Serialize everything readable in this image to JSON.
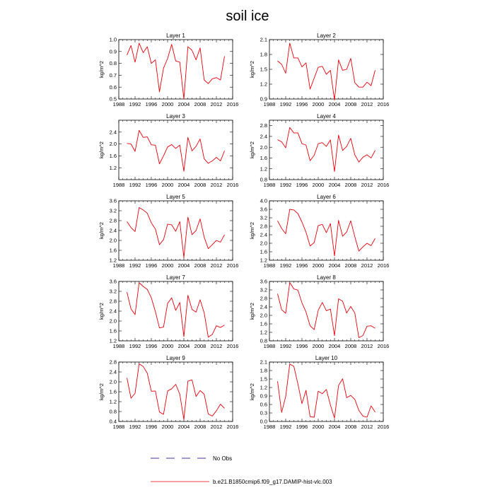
{
  "title": "soil ice",
  "legend": {
    "obs_label": "No Obs",
    "obs_color": "#4b2fa0",
    "model_label": "b.e21.B1850cmip6.f09_g17.DAMIP-hist-vlc.003",
    "model_color": "#e8000b"
  },
  "chart_data": [
    {
      "type": "line",
      "title": "Layer 1",
      "ylabel": "kg/m^2",
      "xlim": [
        1988,
        2016
      ],
      "x_ticks": [
        "1988",
        "1992",
        "1996",
        "2000",
        "2004",
        "2008",
        "2012",
        "2016"
      ],
      "ylim": [
        0.5,
        1.0
      ],
      "y_ticks": [
        "0.5",
        "0.6",
        "0.7",
        "0.8",
        "0.9",
        "1.0"
      ],
      "x": [
        1990,
        1991,
        1992,
        1993,
        1994,
        1995,
        1996,
        1997,
        1998,
        1999,
        2000,
        2001,
        2002,
        2003,
        2004,
        2005,
        2006,
        2007,
        2008,
        2009,
        2010,
        2011,
        2012,
        2013,
        2014
      ],
      "series": [
        {
          "values": [
            0.87,
            0.95,
            0.81,
            0.97,
            0.89,
            0.94,
            0.8,
            0.83,
            0.56,
            0.76,
            0.84,
            0.96,
            0.82,
            0.81,
            0.5,
            0.94,
            0.91,
            0.83,
            0.93,
            0.66,
            0.63,
            0.67,
            0.68,
            0.66,
            0.86
          ]
        }
      ]
    },
    {
      "type": "line",
      "title": "Layer 2",
      "ylabel": "kg/m^2",
      "xlim": [
        1988,
        2016
      ],
      "x_ticks": [
        "1988",
        "1992",
        "1996",
        "2000",
        "2004",
        "2008",
        "2012",
        "2016"
      ],
      "ylim": [
        0.9,
        2.1
      ],
      "y_ticks": [
        "0.9",
        "1.2",
        "1.5",
        "1.8",
        "2.1"
      ],
      "x": [
        1990,
        1991,
        1992,
        1993,
        1994,
        1995,
        1996,
        1997,
        1998,
        1999,
        2000,
        2001,
        2002,
        2003,
        2004,
        2005,
        2006,
        2007,
        2008,
        2009,
        2010,
        2011,
        2012,
        2013,
        2014
      ],
      "series": [
        {
          "values": [
            1.67,
            1.6,
            1.42,
            2.03,
            1.73,
            1.73,
            1.55,
            1.63,
            1.1,
            1.32,
            1.54,
            1.56,
            1.4,
            1.48,
            0.88,
            1.69,
            1.48,
            1.5,
            1.72,
            1.23,
            1.14,
            1.14,
            1.24,
            1.17,
            1.48
          ]
        }
      ]
    },
    {
      "type": "line",
      "title": "Layer 3",
      "ylabel": "kg/m^2",
      "xlim": [
        1988,
        2016
      ],
      "x_ticks": [
        "1988",
        "1992",
        "1996",
        "2000",
        "2004",
        "2008",
        "2012",
        "2016"
      ],
      "ylim": [
        0.8,
        2.8
      ],
      "y_ticks": [
        "1.2",
        "1.6",
        "2.0",
        "2.4"
      ],
      "x": [
        1990,
        1991,
        1992,
        1993,
        1994,
        1995,
        1996,
        1997,
        1998,
        1999,
        2000,
        2001,
        2002,
        2003,
        2004,
        2005,
        2006,
        2007,
        2008,
        2009,
        2010,
        2011,
        2012,
        2013,
        2014
      ],
      "series": [
        {
          "values": [
            2.02,
            2.0,
            1.75,
            2.46,
            2.22,
            2.24,
            1.97,
            1.96,
            1.33,
            1.6,
            1.9,
            1.98,
            1.85,
            1.96,
            1.08,
            2.22,
            1.77,
            1.92,
            2.17,
            1.5,
            1.35,
            1.43,
            1.55,
            1.43,
            1.77
          ]
        }
      ]
    },
    {
      "type": "line",
      "title": "Layer 4",
      "ylabel": "kg/m^2",
      "xlim": [
        1988,
        2016
      ],
      "x_ticks": [
        "1988",
        "1992",
        "1996",
        "2000",
        "2004",
        "2008",
        "2012",
        "2016"
      ],
      "ylim": [
        0.8,
        3.0
      ],
      "y_ticks": [
        "0.8",
        "1.2",
        "1.6",
        "2.0",
        "2.4",
        "2.8"
      ],
      "x": [
        1990,
        1991,
        1992,
        1993,
        1994,
        1995,
        1996,
        1997,
        1998,
        1999,
        2000,
        2001,
        2002,
        2003,
        2004,
        2005,
        2006,
        2007,
        2008,
        2009,
        2010,
        2011,
        2012,
        2013,
        2014
      ],
      "series": [
        {
          "values": [
            2.28,
            2.2,
            1.98,
            2.73,
            2.53,
            2.53,
            2.13,
            2.08,
            1.5,
            1.7,
            2.13,
            2.17,
            2.03,
            2.27,
            1.1,
            2.45,
            1.88,
            2.03,
            2.33,
            1.72,
            1.45,
            1.63,
            1.72,
            1.6,
            1.88
          ]
        }
      ]
    },
    {
      "type": "line",
      "title": "Layer 5",
      "ylabel": "kg/m^2",
      "xlim": [
        1988,
        2016
      ],
      "x_ticks": [
        "1988",
        "1992",
        "1996",
        "2000",
        "2004",
        "2008",
        "2012",
        "2016"
      ],
      "ylim": [
        1.2,
        3.6
      ],
      "y_ticks": [
        "1.2",
        "1.6",
        "2.0",
        "2.4",
        "2.8",
        "3.2",
        "3.6"
      ],
      "x": [
        1990,
        1991,
        1992,
        1993,
        1994,
        1995,
        1996,
        1997,
        1998,
        1999,
        2000,
        2001,
        2002,
        2003,
        2004,
        2005,
        2006,
        2007,
        2008,
        2009,
        2010,
        2011,
        2012,
        2013,
        2014
      ],
      "series": [
        {
          "values": [
            2.76,
            2.52,
            2.36,
            3.33,
            3.23,
            3.1,
            2.71,
            2.46,
            1.83,
            2.03,
            2.66,
            2.63,
            2.37,
            2.76,
            1.31,
            2.94,
            2.23,
            2.4,
            2.87,
            2.13,
            1.67,
            1.83,
            2.0,
            1.93,
            2.23
          ]
        }
      ]
    },
    {
      "type": "line",
      "title": "Layer 6",
      "ylabel": "kg/m^2",
      "xlim": [
        1988,
        2016
      ],
      "x_ticks": [
        "1988",
        "1992",
        "1996",
        "2000",
        "2004",
        "2008",
        "2012",
        "2016"
      ],
      "ylim": [
        1.2,
        4.0
      ],
      "y_ticks": [
        "1.2",
        "1.6",
        "2.0",
        "2.4",
        "2.8",
        "3.2",
        "3.6",
        "4.0"
      ],
      "x": [
        1990,
        1991,
        1992,
        1993,
        1994,
        1995,
        1996,
        1997,
        1998,
        1999,
        2000,
        2001,
        2002,
        2003,
        2004,
        2005,
        2006,
        2007,
        2008,
        2009,
        2010,
        2011,
        2012,
        2013,
        2014
      ],
      "series": [
        {
          "values": [
            3.06,
            2.7,
            2.45,
            3.6,
            3.57,
            3.4,
            3.0,
            2.52,
            1.87,
            2.03,
            2.83,
            2.89,
            2.5,
            2.93,
            1.4,
            3.08,
            2.33,
            2.53,
            3.06,
            2.31,
            1.63,
            1.83,
            2.0,
            1.89,
            2.23
          ]
        }
      ]
    },
    {
      "type": "line",
      "title": "Layer 7",
      "ylabel": "kg/m^2",
      "xlim": [
        1988,
        2016
      ],
      "x_ticks": [
        "1988",
        "1992",
        "1996",
        "2000",
        "2004",
        "2008",
        "2012",
        "2016"
      ],
      "ylim": [
        1.2,
        3.6
      ],
      "y_ticks": [
        "1.2",
        "1.6",
        "2.0",
        "2.4",
        "2.8",
        "3.2",
        "3.6"
      ],
      "x": [
        1990,
        1991,
        1992,
        1993,
        1994,
        1995,
        1996,
        1997,
        1998,
        1999,
        2000,
        2001,
        2002,
        2003,
        2004,
        2005,
        2006,
        2007,
        2008,
        2009,
        2010,
        2011,
        2012,
        2013,
        2014
      ],
      "series": [
        {
          "values": [
            3.17,
            2.49,
            2.26,
            3.55,
            3.4,
            3.28,
            2.94,
            2.38,
            1.72,
            1.76,
            2.71,
            2.94,
            2.43,
            2.75,
            1.37,
            3.04,
            2.47,
            2.36,
            2.86,
            2.33,
            1.35,
            1.46,
            1.81,
            1.74,
            1.84
          ]
        }
      ]
    },
    {
      "type": "line",
      "title": "Layer 8",
      "ylabel": "kg/m^2",
      "xlim": [
        1988,
        2016
      ],
      "x_ticks": [
        "1988",
        "1992",
        "1996",
        "2000",
        "2004",
        "2008",
        "2012",
        "2016"
      ],
      "ylim": [
        0.8,
        3.6
      ],
      "y_ticks": [
        "0.8",
        "1.2",
        "1.6",
        "2.0",
        "2.4",
        "2.8",
        "3.2",
        "3.6"
      ],
      "x": [
        1990,
        1991,
        1992,
        1993,
        1994,
        1995,
        1996,
        1997,
        1998,
        1999,
        2000,
        2001,
        2002,
        2003,
        2004,
        2005,
        2006,
        2007,
        2008,
        2009,
        2010,
        2011,
        2012,
        2013,
        2014
      ],
      "series": [
        {
          "values": [
            3.02,
            2.27,
            2.1,
            3.55,
            3.25,
            3.19,
            2.59,
            2.16,
            1.51,
            1.33,
            2.24,
            2.61,
            2.22,
            2.3,
            1.05,
            2.78,
            2.67,
            2.11,
            2.42,
            2.11,
            0.95,
            1.05,
            1.49,
            1.51,
            1.39
          ]
        }
      ]
    },
    {
      "type": "line",
      "title": "Layer 9",
      "ylabel": "kg/m^2",
      "xlim": [
        1988,
        2016
      ],
      "x_ticks": [
        "1988",
        "1992",
        "1996",
        "2000",
        "2004",
        "2008",
        "2012",
        "2016"
      ],
      "ylim": [
        0.4,
        2.8
      ],
      "y_ticks": [
        "0.4",
        "0.8",
        "1.2",
        "1.6",
        "2.0",
        "2.4",
        "2.8"
      ],
      "x": [
        1990,
        1991,
        1992,
        1993,
        1994,
        1995,
        1996,
        1997,
        1998,
        1999,
        2000,
        2001,
        2002,
        2003,
        2004,
        2005,
        2006,
        2007,
        2008,
        2009,
        2010,
        2011,
        2012,
        2013,
        2014
      ],
      "series": [
        {
          "values": [
            2.16,
            1.34,
            1.54,
            2.73,
            2.62,
            2.35,
            1.62,
            1.63,
            0.78,
            0.69,
            1.63,
            1.72,
            1.9,
            1.5,
            0.48,
            2.03,
            2.08,
            1.41,
            1.65,
            1.5,
            0.7,
            0.62,
            0.83,
            1.1,
            0.93
          ]
        }
      ]
    },
    {
      "type": "line",
      "title": "Layer 10",
      "ylabel": "kg/m^2",
      "xlim": [
        1988,
        2016
      ],
      "x_ticks": [
        "1988",
        "1992",
        "1996",
        "2000",
        "2004",
        "2008",
        "2012",
        "2016"
      ],
      "ylim": [
        0.0,
        2.1
      ],
      "y_ticks": [
        "0.0",
        "0.3",
        "0.6",
        "0.9",
        "1.2",
        "1.5",
        "1.8",
        "2.1"
      ],
      "x": [
        1990,
        1991,
        1992,
        1993,
        1994,
        1995,
        1996,
        1997,
        1998,
        1999,
        2000,
        2001,
        2002,
        2003,
        2004,
        2005,
        2006,
        2007,
        2008,
        2009,
        2010,
        2011,
        2012,
        2013,
        2014
      ],
      "series": [
        {
          "values": [
            1.42,
            0.32,
            0.88,
            2.03,
            1.95,
            1.33,
            0.63,
            1.1,
            0.17,
            0.15,
            1.07,
            0.98,
            1.13,
            0.58,
            0.12,
            1.27,
            1.51,
            0.84,
            0.92,
            0.78,
            0.39,
            0.19,
            0.15,
            0.55,
            0.33
          ]
        }
      ]
    }
  ]
}
